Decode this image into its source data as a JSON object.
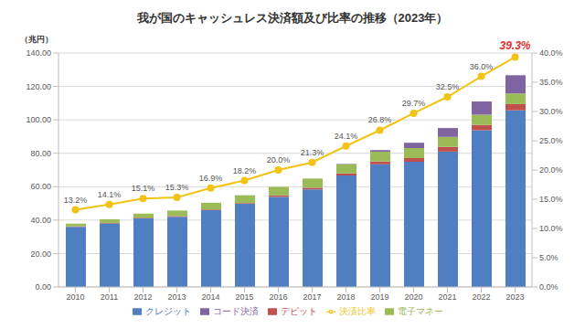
{
  "chart_data": {
    "type": "bar",
    "title": "我が国のキャッシュレス決済額及び比率の推移（2023年）",
    "ylabel": "（兆円）",
    "categories": [
      "2010",
      "2011",
      "2012",
      "2013",
      "2014",
      "2015",
      "2016",
      "2017",
      "2018",
      "2019",
      "2020",
      "2021",
      "2022",
      "2023"
    ],
    "series": [
      {
        "name": "クレジット",
        "type": "bar",
        "color": "#4f7ec1",
        "values": [
          36.0,
          38.0,
          41.0,
          42.0,
          46.0,
          49.8,
          53.9,
          58.4,
          66.7,
          73.4,
          74.9,
          81.0,
          93.8,
          105.7
        ]
      },
      {
        "name": "デビット",
        "type": "bar",
        "color": "#c0504d",
        "values": [
          0.3,
          0.3,
          0.4,
          0.4,
          0.4,
          0.4,
          0.9,
          1.0,
          1.3,
          1.7,
          2.2,
          2.8,
          3.2,
          3.7
        ]
      },
      {
        "name": "電子マネー",
        "type": "bar",
        "color": "#9bbb59",
        "values": [
          1.6,
          2.2,
          2.5,
          3.3,
          4.0,
          4.7,
          5.1,
          5.5,
          5.5,
          5.8,
          6.0,
          6.0,
          6.1,
          6.4
        ]
      },
      {
        "name": "コード決済",
        "type": "bar",
        "color": "#8064a2",
        "values": [
          0,
          0,
          0,
          0,
          0,
          0,
          0,
          0,
          0.2,
          1.0,
          3.2,
          5.3,
          7.9,
          10.9
        ]
      },
      {
        "name": "決済比率",
        "type": "line",
        "axis": "y2",
        "color": "#f2c314",
        "marker": "circle",
        "data_labels": true,
        "values": [
          13.2,
          14.1,
          15.1,
          15.3,
          16.9,
          18.2,
          20.0,
          21.3,
          24.1,
          26.8,
          29.7,
          32.5,
          36.0,
          39.3
        ],
        "value_labels": [
          "13.2%",
          "14.1%",
          "15.1%",
          "15.3%",
          "16.9%",
          "18.2%",
          "20.0%",
          "21.3%",
          "24.1%",
          "26.8%",
          "29.7%",
          "32.5%",
          "36.0%",
          "39.3%"
        ]
      }
    ],
    "stacked": true,
    "ylim": [
      0,
      140
    ],
    "yticks": [
      {
        "value": 0,
        "label": "0.00"
      },
      {
        "value": 20,
        "label": "20.00"
      },
      {
        "value": 40,
        "label": "40.00"
      },
      {
        "value": 60,
        "label": "60.00"
      },
      {
        "value": 80,
        "label": "80.00"
      },
      {
        "value": 100,
        "label": "100.00"
      },
      {
        "value": 120,
        "label": "120.00"
      },
      {
        "value": 140,
        "label": "140.00"
      }
    ],
    "y2lim": [
      0,
      40
    ],
    "y2ticks": [
      {
        "value": 0,
        "label": "0.0%"
      },
      {
        "value": 5,
        "label": "5.0%"
      },
      {
        "value": 10,
        "label": "10.0%"
      },
      {
        "value": 15,
        "label": "15.0%"
      },
      {
        "value": 20,
        "label": "20.0%"
      },
      {
        "value": 25,
        "label": "25.0%"
      },
      {
        "value": 30,
        "label": "30.0%"
      },
      {
        "value": 35,
        "label": "35.0%"
      },
      {
        "value": 40,
        "label": "40.0%"
      }
    ],
    "grid": true,
    "legend": "bottom"
  }
}
